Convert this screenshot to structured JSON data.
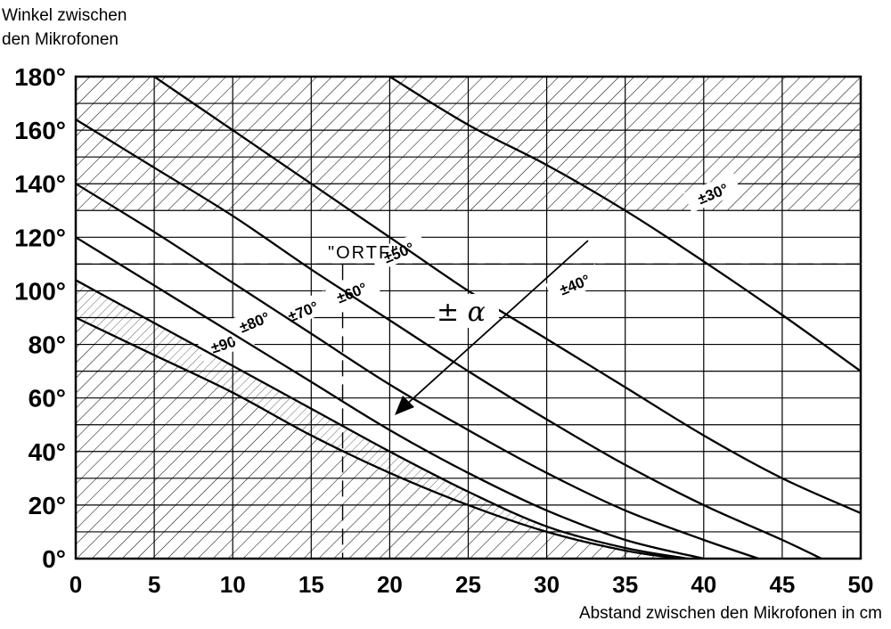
{
  "chart_data": {
    "type": "line",
    "ylabel_lines": [
      "Winkel zwischen",
      "den Mikrofonen"
    ],
    "xlabel": "Abstand zwischen den Mikrofonen in cm",
    "xlim": [
      0,
      50
    ],
    "ylim": [
      0,
      180
    ],
    "xticks": [
      "0",
      "5",
      "10",
      "15",
      "20",
      "25",
      "30",
      "35",
      "40",
      "45",
      "50"
    ],
    "yticks": [
      "0°",
      "20°",
      "40°",
      "60°",
      "80°",
      "100°",
      "120°",
      "140°",
      "160°",
      "180°"
    ],
    "ytick_values": [
      0,
      20,
      40,
      60,
      80,
      100,
      120,
      140,
      160,
      180
    ],
    "grid": true,
    "hatched_regions": [
      "angle above 130°",
      "lower-left region below the ±90° curve"
    ],
    "series": [
      {
        "name": "±90°",
        "x": [
          0,
          5,
          10,
          15,
          20,
          25,
          30,
          35,
          38.5
        ],
        "y": [
          90,
          76,
          62,
          46,
          32,
          20,
          10,
          3,
          0
        ]
      },
      {
        "name": "±80°",
        "x": [
          0,
          5,
          10,
          15,
          20,
          25,
          30,
          35,
          39
        ],
        "y": [
          104,
          88,
          72,
          56,
          40,
          25,
          12,
          4,
          0
        ]
      },
      {
        "name": "±70°",
        "x": [
          0,
          5,
          10,
          15,
          20,
          25,
          30,
          35,
          40
        ],
        "y": [
          120,
          102,
          84,
          66,
          48,
          32,
          18,
          7,
          0
        ]
      },
      {
        "name": "±60°",
        "x": [
          0,
          5,
          10,
          15,
          20,
          25,
          30,
          35,
          40,
          43.5
        ],
        "y": [
          140,
          122,
          103,
          84,
          65,
          48,
          32,
          18,
          7,
          0
        ]
      },
      {
        "name": "±50°",
        "x": [
          0,
          5,
          10,
          15,
          20,
          25,
          30,
          35,
          40,
          45,
          47.5
        ],
        "y": [
          164,
          146,
          128,
          108,
          89,
          70,
          52,
          35,
          20,
          7,
          0
        ]
      },
      {
        "name": "±40°",
        "x": [
          5,
          10,
          15,
          20,
          25,
          30,
          35,
          40,
          45,
          50
        ],
        "y": [
          180,
          160,
          140,
          120,
          100,
          82,
          64,
          46,
          30,
          17
        ]
      },
      {
        "name": "±30°",
        "x": [
          20,
          25,
          30,
          35,
          40,
          45,
          50
        ],
        "y": [
          180,
          162,
          147,
          130,
          111,
          91,
          70
        ]
      }
    ],
    "annotations": {
      "ortf_label": "\"ORTF\"",
      "ortf_point": {
        "x": 17,
        "y": 110
      },
      "alpha_label": "± α"
    }
  }
}
